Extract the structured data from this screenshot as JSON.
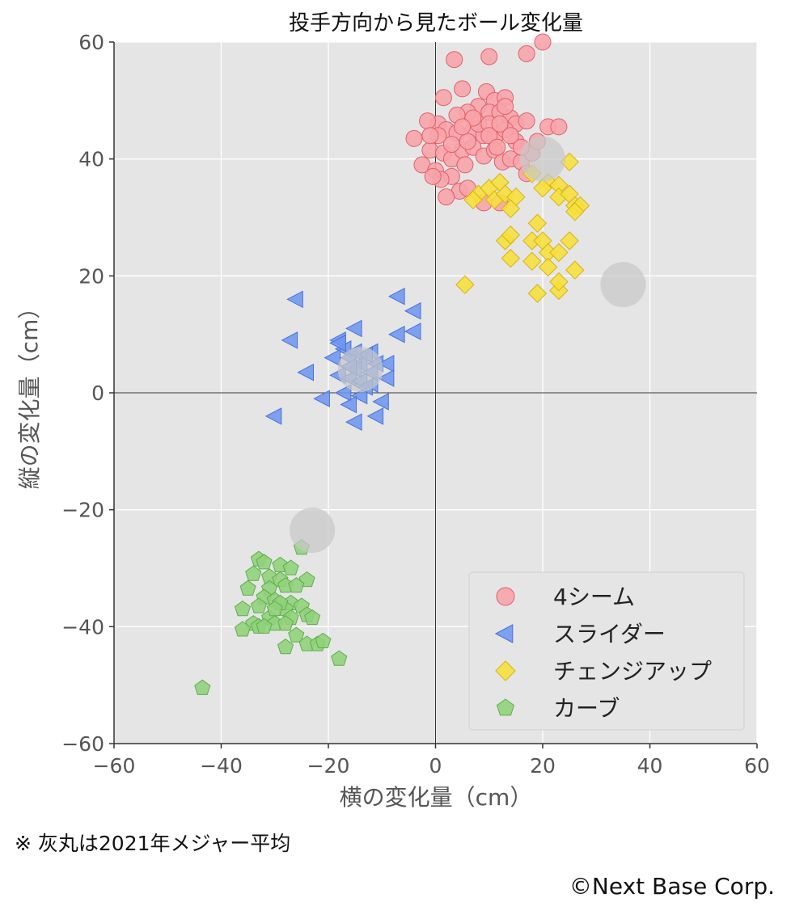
{
  "chart_data": {
    "type": "scatter",
    "title": "投手方向から見たボール変化量",
    "xlabel": "横の変化量（cm）",
    "ylabel": "縦の変化量（cm）",
    "xlim": [
      -60,
      60
    ],
    "ylim": [
      -60,
      60
    ],
    "xticks": [
      "−60",
      "−40",
      "−20",
      "0",
      "20",
      "40",
      "60"
    ],
    "yticks": [
      "60",
      "40",
      "20",
      "0",
      "−20",
      "−40",
      "−60"
    ],
    "grid": true,
    "legend_position": "bottom-right",
    "reference_lines": [
      {
        "axis": "x",
        "value": 0
      },
      {
        "axis": "y",
        "value": 0
      }
    ],
    "mlb_average_2021": [
      {
        "x": 20,
        "y": 40
      },
      {
        "x": -14,
        "y": 4
      },
      {
        "x": 35,
        "y": 18.5
      },
      {
        "x": -23,
        "y": -23.5
      }
    ],
    "series": [
      {
        "name": "4シーム",
        "marker": "circle",
        "color": "#f8a3a8",
        "edge": "#e0606a",
        "points": [
          [
            3.5,
            57
          ],
          [
            10,
            57.5
          ],
          [
            17,
            58
          ],
          [
            20,
            60
          ],
          [
            1.5,
            50.5
          ],
          [
            5,
            52
          ],
          [
            9.5,
            51.5
          ],
          [
            11,
            50
          ],
          [
            13,
            50.5
          ],
          [
            8,
            49
          ],
          [
            6,
            48
          ],
          [
            4,
            47.5
          ],
          [
            10,
            48
          ],
          [
            12,
            48
          ],
          [
            14,
            47
          ],
          [
            15,
            46
          ],
          [
            17,
            46.5
          ],
          [
            0.5,
            46
          ],
          [
            -1.5,
            46.5
          ],
          [
            2,
            45
          ],
          [
            4,
            44.5
          ],
          [
            7,
            45
          ],
          [
            9,
            44
          ],
          [
            11,
            43.5
          ],
          [
            13,
            45
          ],
          [
            21,
            45.5
          ],
          [
            23,
            45.5
          ],
          [
            -4,
            43.5
          ],
          [
            -1,
            41.5
          ],
          [
            1.5,
            41
          ],
          [
            3,
            40
          ],
          [
            5,
            41.5
          ],
          [
            7,
            42
          ],
          [
            9,
            40.5
          ],
          [
            11,
            41.5
          ],
          [
            12.5,
            39.5
          ],
          [
            14,
            40
          ],
          [
            16,
            39.5
          ],
          [
            18,
            41
          ],
          [
            19,
            43
          ],
          [
            15,
            43
          ],
          [
            6,
            43
          ],
          [
            8,
            46
          ],
          [
            10,
            46
          ],
          [
            5.5,
            39
          ],
          [
            3,
            37
          ],
          [
            -2.5,
            39
          ],
          [
            0,
            38
          ],
          [
            1,
            36.5
          ],
          [
            4.5,
            34.5
          ],
          [
            6,
            35
          ],
          [
            9,
            32.5
          ],
          [
            12,
            32.5
          ],
          [
            2,
            33.5
          ],
          [
            0.5,
            44
          ],
          [
            10,
            44
          ],
          [
            12,
            46
          ],
          [
            7,
            47
          ],
          [
            13,
            49
          ],
          [
            11.5,
            42
          ],
          [
            3,
            42.5
          ],
          [
            16,
            42
          ],
          [
            17,
            37.5
          ],
          [
            -0.5,
            37
          ],
          [
            -1,
            44
          ],
          [
            5,
            45.5
          ],
          [
            14,
            44
          ]
        ]
      },
      {
        "name": "スライダー",
        "marker": "triangle-left",
        "color": "#6e96f0",
        "edge": "#4a72d8",
        "points": [
          [
            -26,
            16
          ],
          [
            -7,
            16.5
          ],
          [
            -4,
            14
          ],
          [
            -27,
            9
          ],
          [
            -18,
            9
          ],
          [
            -17,
            7.5
          ],
          [
            -15,
            11
          ],
          [
            -19,
            6
          ],
          [
            -16,
            6
          ],
          [
            -14,
            5
          ],
          [
            -12,
            7
          ],
          [
            -11,
            5
          ],
          [
            -9,
            5
          ],
          [
            -4,
            10.5
          ],
          [
            -7,
            10
          ],
          [
            -24,
            3.5
          ],
          [
            -18,
            3
          ],
          [
            -16,
            2.5
          ],
          [
            -14,
            2
          ],
          [
            -12,
            1.5
          ],
          [
            -9,
            2.5
          ],
          [
            -17,
            0
          ],
          [
            -14,
            -0.5
          ],
          [
            -21,
            -1
          ],
          [
            -16,
            -2
          ],
          [
            -10,
            -1.5
          ],
          [
            -11,
            -4
          ],
          [
            -15,
            -5
          ],
          [
            -30,
            -4
          ],
          [
            -13,
            1
          ],
          [
            -15,
            4
          ],
          [
            -12,
            3.5
          ],
          [
            -16,
            4.5
          ],
          [
            -13,
            6.5
          ],
          [
            -18,
            8.5
          ],
          [
            -15,
            7
          ]
        ]
      },
      {
        "name": "チェンジアップ",
        "marker": "diamond",
        "color": "#f7df3a",
        "edge": "#d4b318",
        "points": [
          [
            25,
            39.5
          ],
          [
            18,
            37.5
          ],
          [
            21,
            36
          ],
          [
            23,
            35.5
          ],
          [
            20,
            35
          ],
          [
            8,
            34
          ],
          [
            10,
            35
          ],
          [
            12,
            36
          ],
          [
            11,
            33
          ],
          [
            13,
            34
          ],
          [
            15,
            33.5
          ],
          [
            7,
            33
          ],
          [
            14,
            31.5
          ],
          [
            23,
            33.5
          ],
          [
            25,
            34
          ],
          [
            26,
            32
          ],
          [
            27,
            32
          ],
          [
            26,
            31
          ],
          [
            19,
            29
          ],
          [
            13,
            26
          ],
          [
            14,
            27
          ],
          [
            18,
            26
          ],
          [
            20,
            26
          ],
          [
            25,
            26
          ],
          [
            21,
            24
          ],
          [
            23,
            24
          ],
          [
            18,
            22.5
          ],
          [
            21,
            21.5
          ],
          [
            26,
            21
          ],
          [
            14,
            23
          ],
          [
            5.5,
            18.5
          ],
          [
            19,
            17
          ],
          [
            23,
            17.5
          ],
          [
            23,
            19
          ]
        ]
      },
      {
        "name": "カーブ",
        "marker": "pentagon",
        "color": "#8fd17a",
        "edge": "#5fae4a",
        "points": [
          [
            -25,
            -26.5
          ],
          [
            -33,
            -28.5
          ],
          [
            -32,
            -29
          ],
          [
            -29,
            -29.5
          ],
          [
            -27,
            -30
          ],
          [
            -34,
            -31
          ],
          [
            -31,
            -31.5
          ],
          [
            -29,
            -32
          ],
          [
            -24,
            -32
          ],
          [
            -35,
            -33.5
          ],
          [
            -31,
            -33.5
          ],
          [
            -28,
            -33
          ],
          [
            -26,
            -33
          ],
          [
            -32,
            -35
          ],
          [
            -30,
            -35.5
          ],
          [
            -27,
            -36
          ],
          [
            -33,
            -36.5
          ],
          [
            -28,
            -37
          ],
          [
            -25,
            -36.5
          ],
          [
            -36,
            -37
          ],
          [
            -31,
            -38.5
          ],
          [
            -27,
            -38.5
          ],
          [
            -24,
            -38
          ],
          [
            -23,
            -38.5
          ],
          [
            -34,
            -39.5
          ],
          [
            -30,
            -39.5
          ],
          [
            -28,
            -39.5
          ],
          [
            -33,
            -40
          ],
          [
            -36,
            -40.5
          ],
          [
            -32,
            -40
          ],
          [
            -26,
            -41.5
          ],
          [
            -24,
            -43
          ],
          [
            -22,
            -43
          ],
          [
            -21,
            -42.5
          ],
          [
            -28,
            -43.5
          ],
          [
            -18,
            -45.5
          ],
          [
            -43.5,
            -50.5
          ],
          [
            -29,
            -36
          ],
          [
            -30,
            -37
          ]
        ]
      }
    ]
  },
  "footnote": "※ 灰丸は2021年メジャー平均",
  "credit": "©Next Base Corp."
}
